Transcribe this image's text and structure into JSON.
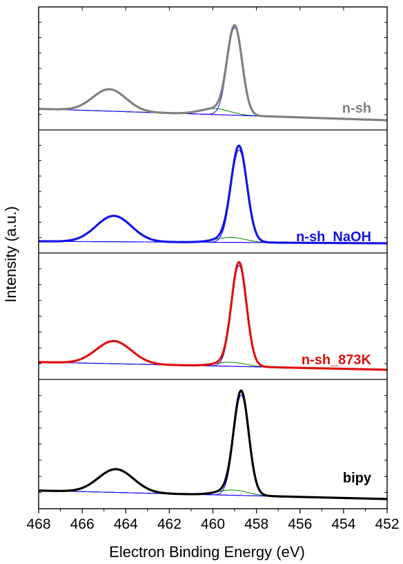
{
  "chart_data": {
    "type": "line",
    "title": "",
    "xlabel": "Electron Binding Energy (eV)",
    "ylabel": "Intensity (a.u.)",
    "xlim": [
      468,
      452
    ],
    "x_reversed": true,
    "x_ticks": [
      468,
      466,
      464,
      462,
      460,
      458,
      456,
      454,
      452
    ],
    "y_ticks_shown": false,
    "grid": false,
    "layout": "stacked-panels",
    "components": {
      "peak_3_2": "blue",
      "peak_1_2": "blue",
      "satellite": "green",
      "background": "magenta"
    },
    "panels": [
      {
        "label": "n-sh",
        "color": "#808080",
        "ylim": [
          0,
          1.0
        ],
        "bg_left": 0.115,
        "bg_right": 0.0,
        "peak_3_2": {
          "center": 459.0,
          "fwhm": 0.8,
          "height": 0.88
        },
        "peak_1_2": {
          "center": 464.75,
          "fwhm": 1.8,
          "height": 0.22
        },
        "satellite": {
          "center": 459.9,
          "fwhm": 1.6,
          "height": 0.06
        }
      },
      {
        "label": "n-sh_NaOH",
        "color": "#1414e6",
        "ylim": [
          0,
          1.0
        ],
        "bg_left": 0.02,
        "bg_right": 0.0,
        "peak_3_2": {
          "center": 458.8,
          "fwhm": 0.85,
          "height": 0.93
        },
        "peak_1_2": {
          "center": 464.55,
          "fwhm": 1.9,
          "height": 0.26
        },
        "satellite": {
          "center": 459.2,
          "fwhm": 1.6,
          "height": 0.05
        }
      },
      {
        "label": "n-sh_873K",
        "color": "#e01010",
        "ylim": [
          0,
          1.0
        ],
        "bg_left": 0.075,
        "bg_right": 0.0,
        "peak_3_2": {
          "center": 458.8,
          "fwhm": 0.8,
          "height": 0.98
        },
        "peak_1_2": {
          "center": 464.55,
          "fwhm": 1.9,
          "height": 0.22
        },
        "satellite": {
          "center": 459.2,
          "fwhm": 1.6,
          "height": 0.04
        }
      },
      {
        "label": "bipy",
        "color": "#000000",
        "ylim": [
          0,
          1.0
        ],
        "bg_left": 0.08,
        "bg_right": 0.0,
        "peak_3_2": {
          "center": 458.7,
          "fwhm": 0.8,
          "height": 0.95
        },
        "peak_1_2": {
          "center": 464.45,
          "fwhm": 1.9,
          "height": 0.22
        },
        "satellite": {
          "center": 459.1,
          "fwhm": 1.6,
          "height": 0.05
        }
      }
    ]
  }
}
